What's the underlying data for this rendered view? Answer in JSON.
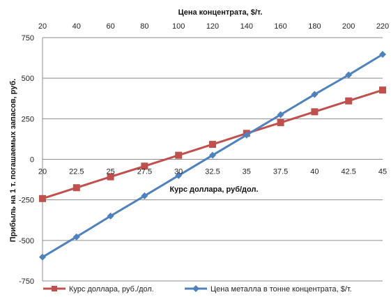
{
  "chart_data": {
    "type": "line",
    "x_top_label": "Цена концентрата,  $/т.",
    "x_bottom_label": "Курс доллара, руб/дол.",
    "ylabel": "Прибыль на 1 т. погашаемых запасов,  руб.",
    "top_ticks": [
      "20",
      "40",
      "60",
      "80",
      "100",
      "120",
      "140",
      "160",
      "180",
      "200",
      "220"
    ],
    "bottom_ticks": [
      "20",
      "22.5",
      "25",
      "27.5",
      "30",
      "32.5",
      "35",
      "37.5",
      "40",
      "42.5",
      "45"
    ],
    "y_ticks": [
      "750",
      "500",
      "250",
      "0",
      "-250",
      "-500",
      "-750"
    ],
    "ylim": [
      -750,
      750
    ],
    "grid": true,
    "legend_position": "bottom",
    "series": [
      {
        "name": "Курс доллара, руб./дол.",
        "color": "#c0504d",
        "marker": "square",
        "axis": "bottom",
        "x": [
          20,
          22.5,
          25,
          27.5,
          30,
          32.5,
          35,
          37.5,
          40,
          42.5,
          45
        ],
        "values": [
          -242,
          -175,
          -108,
          -42,
          25,
          92,
          160,
          226,
          293,
          360,
          427
        ]
      },
      {
        "name": "Цена металла в тонне концентрата, $/т.",
        "color": "#4f81bd",
        "marker": "diamond",
        "axis": "top",
        "x": [
          20,
          40,
          60,
          80,
          100,
          120,
          140,
          160,
          180,
          200,
          220
        ],
        "values": [
          -603,
          -478,
          -350,
          -225,
          -100,
          25,
          150,
          275,
          400,
          520,
          647
        ]
      }
    ]
  }
}
